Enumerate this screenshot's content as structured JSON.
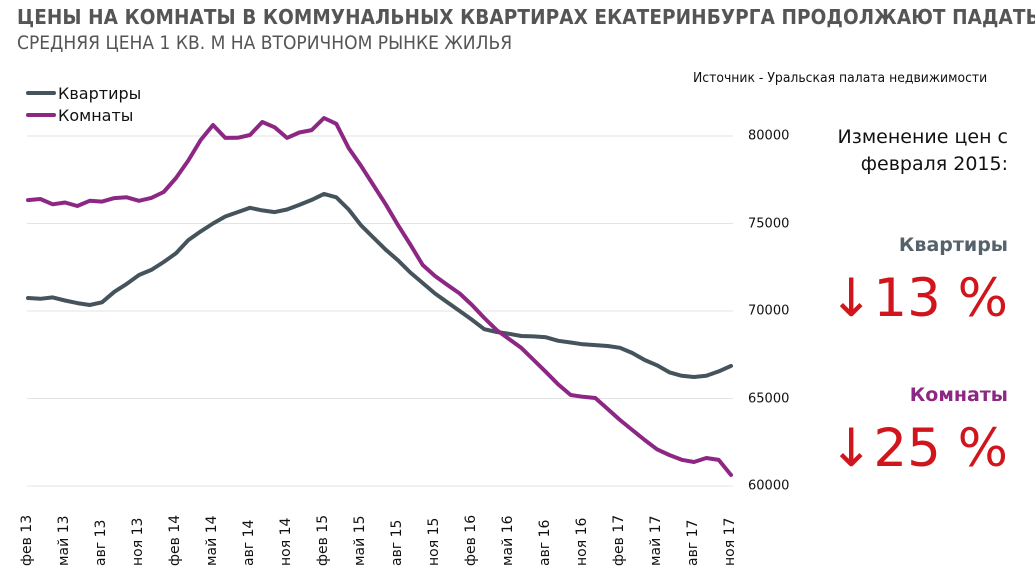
{
  "header": {
    "title": "ЦЕНЫ НА КОМНАТЫ В КОММУНАЛЬНЫХ КВАРТИРАХ ЕКАТЕРИНБУРГА ПРОДОЛЖАЮТ ПАДАТЬ,",
    "subtitle": "СРЕДНЯЯ ЦЕНА 1 КВ. М НА ВТОРИЧНОМ РЫНКЕ ЖИЛЬЯ",
    "source": "Источник - Уральская палата недвижимости"
  },
  "legend": [
    {
      "label": "Квартиры",
      "color": "#45545c"
    },
    {
      "label": "Комнаты",
      "color": "#8c2784"
    }
  ],
  "side_panel": {
    "heading_line1": "Изменение цен с",
    "heading_line2": "февраля 2015:",
    "apartments_label": "Квартиры",
    "apartments_change": "↓13 %",
    "rooms_label": "Комнаты",
    "rooms_change": "↓25 %",
    "apartments_label_color": "#55626a",
    "rooms_label_color": "#8c2784",
    "change_color": "#d0161c"
  },
  "chart_data": {
    "type": "line",
    "title": "ЦЕНЫ НА КОМНАТЫ В КОММУНАЛЬНЫХ КВАРТИРАХ ЕКАТЕРИНБУРГА ПРОДОЛЖАЮТ ПАДАТЬ, СРЕДНЯЯ ЦЕНА 1 КВ. М НА ВТОРИЧНОМ РЫНКЕ ЖИЛЬЯ",
    "xlabel": "",
    "ylabel": "",
    "ylim": [
      60000,
      80000
    ],
    "yticks": [
      "80000",
      "75000",
      "70000",
      "65000",
      "60000"
    ],
    "ytick_values": [
      80000,
      75000,
      70000,
      65000,
      60000
    ],
    "grid": true,
    "legend_position": "top-left",
    "xtick_labels": [
      "фев 13",
      "май 13",
      "авг 13",
      "ноя 13",
      "фев 14",
      "май 14",
      "авг 14",
      "ноя 14",
      "фев 15",
      "май 15",
      "авг 15",
      "ноя 15",
      "фев 16",
      "май 16",
      "авг 16",
      "ноя 16",
      "фев 17",
      "май 17",
      "авг 17",
      "ноя 17"
    ],
    "x": [
      "фев 13",
      "мар 13",
      "апр 13",
      "май 13",
      "июн 13",
      "июл 13",
      "авг 13",
      "сен 13",
      "окт 13",
      "ноя 13",
      "дек 13",
      "янв 14",
      "фев 14",
      "мар 14",
      "апр 14",
      "май 14",
      "июн 14",
      "июл 14",
      "авг 14",
      "сен 14",
      "окт 14",
      "ноя 14",
      "дек 14",
      "янв 15",
      "фев 15",
      "мар 15",
      "апр 15",
      "май 15",
      "июн 15",
      "июл 15",
      "авг 15",
      "сен 15",
      "окт 15",
      "ноя 15",
      "дек 15",
      "янв 16",
      "фев 16",
      "мар 16",
      "апр 16",
      "май 16",
      "июн 16",
      "июл 16",
      "авг 16",
      "сен 16",
      "окт 16",
      "ноя 16",
      "дек 16",
      "янв 17",
      "фев 17",
      "мар 17",
      "апр 17",
      "май 17",
      "июн 17",
      "июл 17",
      "авг 17",
      "сен 17",
      "окт 17",
      "ноя 17"
    ],
    "series": [
      {
        "name": "Квартиры",
        "color": "#45545c",
        "values": [
          70740,
          70700,
          70780,
          70600,
          70450,
          70340,
          70500,
          71100,
          71550,
          72060,
          72350,
          72800,
          73300,
          74050,
          74550,
          75000,
          75400,
          75650,
          75900,
          75750,
          75650,
          75800,
          76060,
          76350,
          76690,
          76500,
          75800,
          74900,
          74200,
          73500,
          72900,
          72200,
          71600,
          71000,
          70500,
          70000,
          69500,
          68960,
          68800,
          68700,
          68570,
          68550,
          68500,
          68300,
          68200,
          68100,
          68050,
          68000,
          67900,
          67600,
          67200,
          66900,
          66500,
          66300,
          66230,
          66300,
          66550,
          66860
        ]
      },
      {
        "name": "Комнаты",
        "color": "#8c2784",
        "values": [
          76340,
          76400,
          76100,
          76200,
          76000,
          76300,
          76250,
          76450,
          76500,
          76300,
          76460,
          76800,
          77600,
          78600,
          79770,
          80630,
          79890,
          79900,
          80060,
          80800,
          80500,
          79890,
          80200,
          80340,
          81030,
          80700,
          79310,
          78300,
          77200,
          76100,
          74910,
          73800,
          72630,
          72000,
          71490,
          71000,
          70340,
          69600,
          68910,
          68400,
          67890,
          67200,
          66510,
          65800,
          65200,
          65100,
          65030,
          64400,
          63770,
          63200,
          62630,
          62100,
          61770,
          61500,
          61370,
          61600,
          61490,
          60630
        ]
      }
    ]
  }
}
